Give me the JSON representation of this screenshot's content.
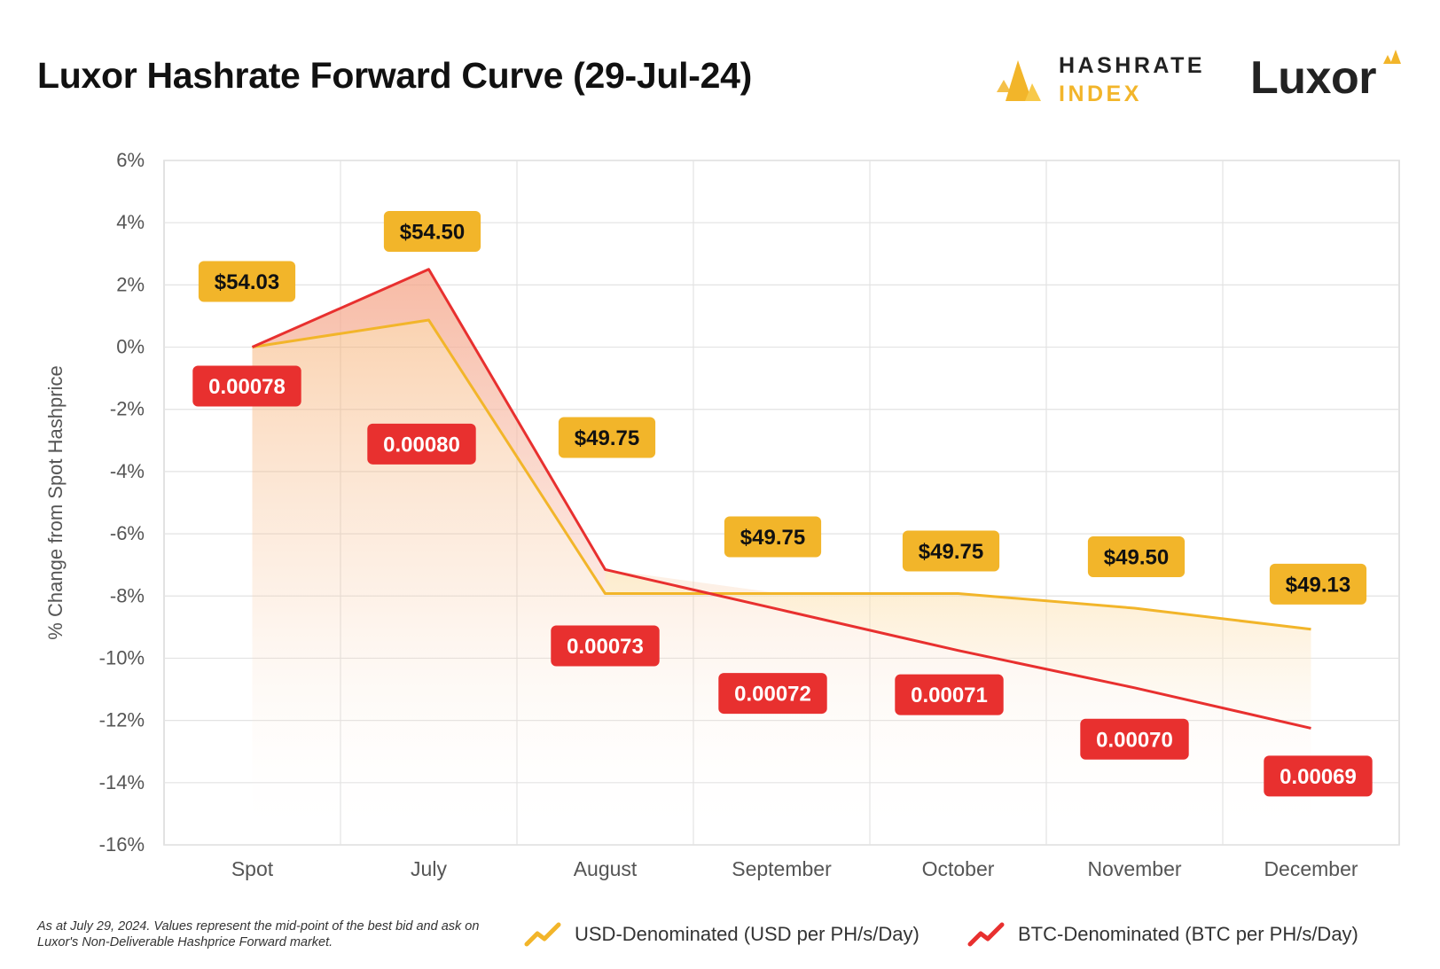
{
  "title": "Luxor Hashrate Forward Curve (29-Jul-24)",
  "brand": {
    "index_line1": "HASHRATE",
    "index_line2": "INDEX",
    "luxor": "Luxor",
    "accent_color": "#f2b52a",
    "dark_color": "#222222"
  },
  "chart_data": {
    "type": "line",
    "categories": [
      "Spot",
      "July",
      "August",
      "September",
      "October",
      "November",
      "December"
    ],
    "ylabel": "% Change from Spot Hashprice",
    "ylim": [
      -16,
      6
    ],
    "yticks": [
      6,
      4,
      2,
      0,
      -2,
      -4,
      -6,
      -8,
      -10,
      -12,
      -14,
      -16
    ],
    "ytick_labels": [
      "6%",
      "4%",
      "2%",
      "0%",
      "-2%",
      "-4%",
      "-6%",
      "-8%",
      "-10%",
      "-12%",
      "-14%",
      "-16%"
    ],
    "grid": true,
    "series": [
      {
        "name": "USD-Denominated (USD per PH/s/Day)",
        "color": "#f2b52a",
        "values": [
          0,
          0.87,
          -7.92,
          -7.92,
          -7.92,
          -8.39,
          -9.07
        ],
        "labels": [
          "$54.03",
          "$54.50",
          "$49.75",
          "$49.75",
          "$49.75",
          "$49.50",
          "$49.13"
        ]
      },
      {
        "name": "BTC-Denominated (BTC per PH/s/Day)",
        "color": "#e8302f",
        "values": [
          0,
          2.5,
          -7.15,
          -8.45,
          -9.75,
          -10.95,
          -12.25
        ],
        "labels": [
          "0.00078",
          "0.00080",
          "0.00073",
          "0.00072",
          "0.00071",
          "0.00070",
          "0.00069"
        ]
      }
    ]
  },
  "footnote": "As at July 29, 2024. Values represent the mid-point of the best bid and ask on Luxor's Non-Deliverable Hashprice Forward market."
}
